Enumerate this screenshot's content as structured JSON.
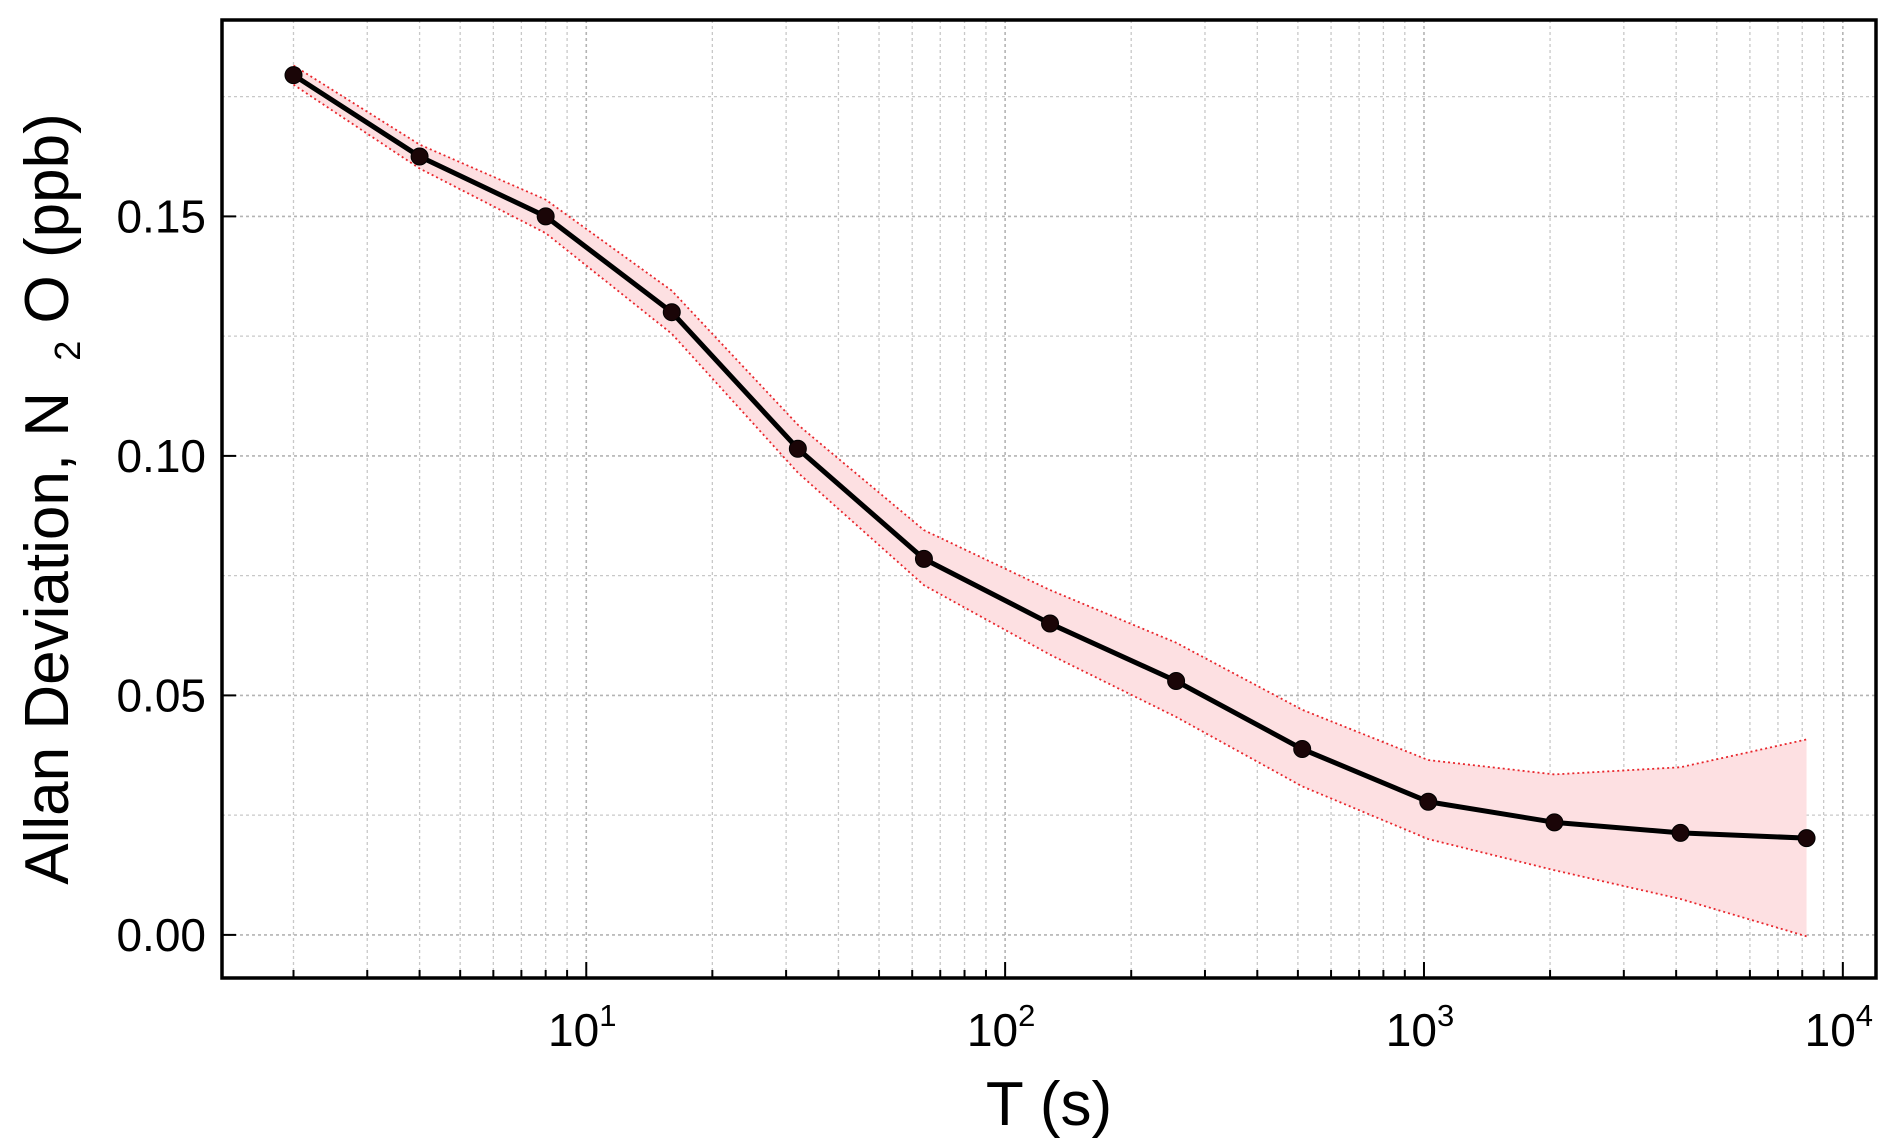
{
  "chart_data": {
    "type": "line",
    "xlabel": "T (s)",
    "ylabel_main": "Allan Deviation, N",
    "ylabel_sub": "2",
    "ylabel_rest": "O (ppb)",
    "x_scale": "log",
    "xlim": [
      1.35,
      12000
    ],
    "ylim": [
      -0.009,
      0.191
    ],
    "grid": true,
    "x_ticks": [
      {
        "value": 10,
        "base": "10",
        "exp": "1"
      },
      {
        "value": 100,
        "base": "10",
        "exp": "2"
      },
      {
        "value": 1000,
        "base": "10",
        "exp": "3"
      },
      {
        "value": 10000,
        "base": "10",
        "exp": "4"
      }
    ],
    "y_ticks": [
      {
        "value": 0.0,
        "label": "0.00"
      },
      {
        "value": 0.05,
        "label": "0.05"
      },
      {
        "value": 0.1,
        "label": "0.10"
      },
      {
        "value": 0.15,
        "label": "0.15"
      }
    ],
    "series": [
      {
        "color": "#000000",
        "x": [
          2,
          4,
          8,
          16,
          32,
          64,
          128,
          256,
          512,
          1024,
          2048,
          4096,
          8192
        ],
        "y": [
          0.1795,
          0.1625,
          0.15,
          0.13,
          0.1015,
          0.0785,
          0.065,
          0.053,
          0.0388,
          0.0278,
          0.0235,
          0.0213,
          0.0202
        ],
        "band_upper": [
          0.1815,
          0.165,
          0.1535,
          0.1345,
          0.1065,
          0.0845,
          0.072,
          0.061,
          0.047,
          0.0365,
          0.0335,
          0.035,
          0.0408
        ],
        "band_lower": [
          0.1775,
          0.16,
          0.1465,
          0.1255,
          0.0965,
          0.073,
          0.0585,
          0.0455,
          0.031,
          0.02,
          0.0135,
          0.0075,
          -0.0003
        ],
        "band_color": "#fde0e2",
        "band_edge_color": "#e8262c"
      }
    ]
  }
}
